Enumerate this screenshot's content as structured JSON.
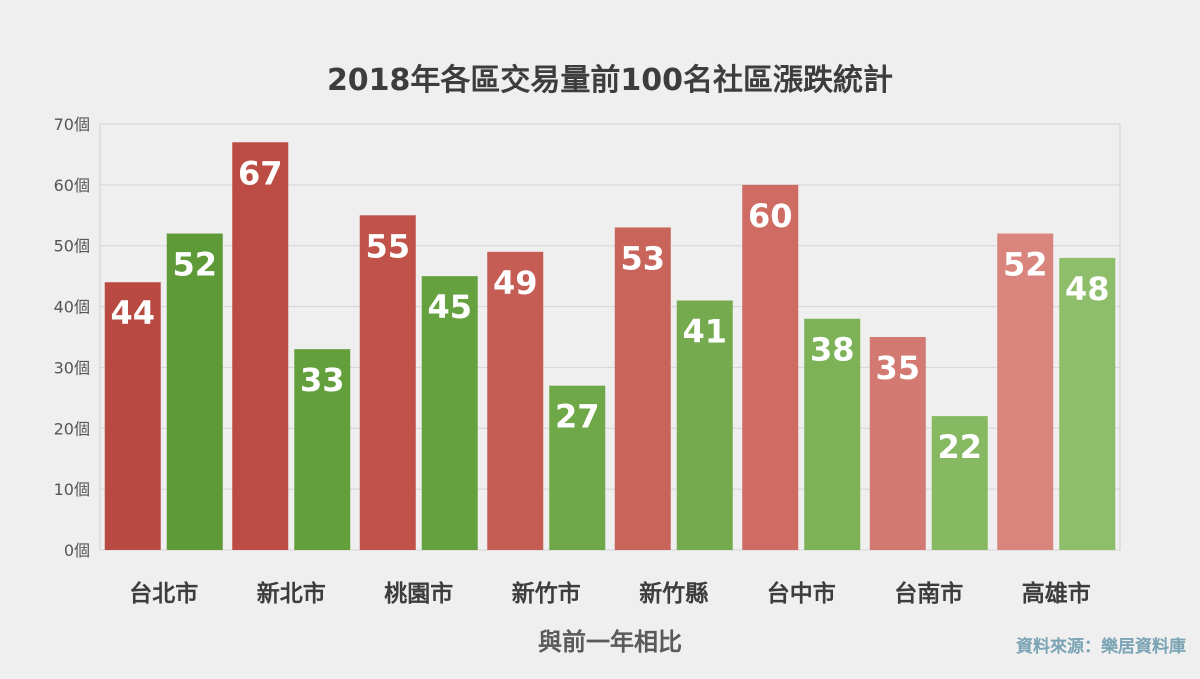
{
  "colors": {
    "background": "#efefef",
    "plot_background": "#efefef",
    "grid": "#d4d4d4",
    "text_dark": "#3d3d3d",
    "axis_tick_text": "#555555",
    "source_text": "#7aa3b4",
    "red_shades": [
      "#b94a42",
      "#bd4d44",
      "#c1524a",
      "#c65d54",
      "#c9645b",
      "#ce6c64",
      "#d27a72",
      "#d9847d"
    ],
    "green_shades": [
      "#5e9a38",
      "#63a03c",
      "#66a140",
      "#6fa848",
      "#75ab4e",
      "#7db256",
      "#86b961",
      "#8fbe6a"
    ]
  },
  "source_label": "資料來源：樂居資料庫",
  "chart_data": {
    "type": "bar",
    "title": "2018年各區交易量前100名社區漲跌統計",
    "xlabel": "與前一年相比",
    "ylabel": "",
    "categories": [
      "台北市",
      "新北市",
      "桃園市",
      "新竹市",
      "新竹縣",
      "台中市",
      "台南市",
      "高雄市"
    ],
    "series": [
      {
        "values": [
          44,
          67,
          55,
          49,
          53,
          60,
          35,
          52
        ]
      },
      {
        "values": [
          52,
          33,
          45,
          27,
          41,
          38,
          22,
          48
        ]
      }
    ],
    "ylim": [
      0,
      70
    ],
    "yticks": [
      0,
      10,
      20,
      30,
      40,
      50,
      60,
      70
    ],
    "ytick_labels": [
      "0個",
      "10個",
      "20個",
      "30個",
      "40個",
      "50個",
      "60個",
      "70個"
    ],
    "grid": true,
    "data_labels": true,
    "legend": "none"
  }
}
